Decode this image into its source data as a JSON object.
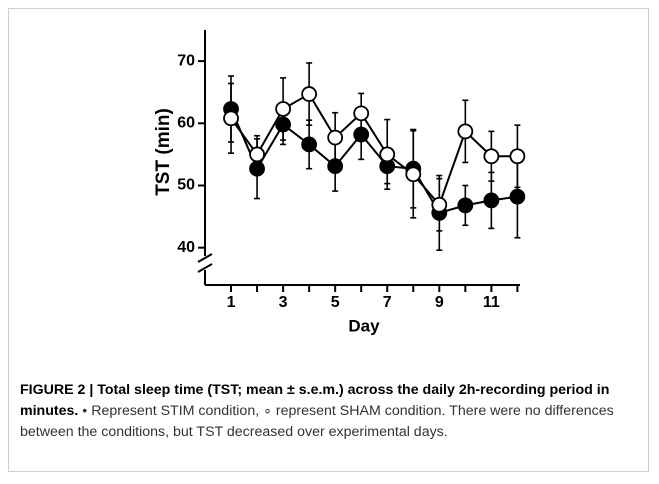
{
  "chart_data": {
    "type": "line",
    "xlabel": "Day",
    "ylabel": "TST (min)",
    "x": [
      1,
      2,
      3,
      4,
      5,
      6,
      7,
      8,
      9,
      10,
      11,
      12
    ],
    "xlim": [
      0,
      12.1
    ],
    "xticks": [
      1,
      3,
      5,
      7,
      9,
      11
    ],
    "xminor_ticks": [
      2,
      4,
      6,
      8,
      10,
      12
    ],
    "ylim": [
      34,
      75
    ],
    "yticks": [
      40,
      50,
      60,
      70
    ],
    "y_axis_break": true,
    "grid": false,
    "series": [
      {
        "name": "STIM",
        "color": "#000000",
        "marker_fill": "#000000",
        "values": [
          62.3,
          52.7,
          59.8,
          56.6,
          53.1,
          58.2,
          53.1,
          52.7,
          45.6,
          46.8,
          47.6,
          48.2
        ],
        "error": [
          5.3,
          4.8,
          3.2,
          3.9,
          4.0,
          4.0,
          2.8,
          6.3,
          6.0,
          3.2,
          4.5,
          6.6
        ]
      },
      {
        "name": "SHAM",
        "color": "#000000",
        "marker_fill": "#ffffff",
        "values": [
          60.8,
          55.0,
          62.3,
          64.7,
          57.7,
          61.6,
          55.0,
          51.8,
          46.9,
          58.7,
          54.7,
          54.7
        ],
        "error": [
          5.6,
          3.0,
          5.0,
          5.0,
          4.0,
          3.2,
          5.6,
          7.0,
          4.2,
          5.0,
          4.0,
          5.0
        ]
      }
    ]
  },
  "caption": {
    "bold": "FIGURE 2 | Total sleep time (TST; mean ± s.e.m.) across the daily 2h-recording period in minutes.",
    "text": " • Represent STIM condition, ∘ represent SHAM condition. There were no differences between the conditions, but TST decreased over experimental days."
  }
}
